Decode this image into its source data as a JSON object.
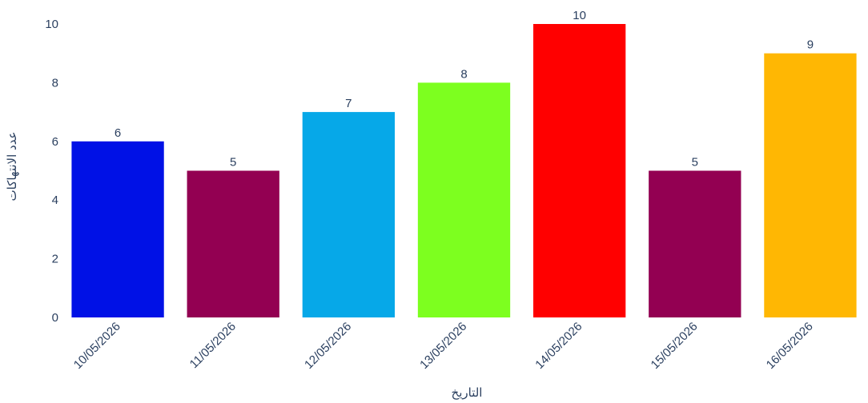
{
  "chart_data": {
    "type": "bar",
    "title": "",
    "xlabel": "التاريخ",
    "ylabel": "عدد الانتهاكات",
    "categories": [
      "10/05/2026",
      "11/05/2026",
      "12/05/2026",
      "13/05/2026",
      "14/05/2026",
      "15/05/2026",
      "16/05/2026"
    ],
    "values": [
      6,
      5,
      7,
      8,
      10,
      5,
      9
    ],
    "colors": [
      "#0011e6",
      "#930052",
      "#06a8e8",
      "#7dff1f",
      "#ff0000",
      "#930052",
      "#ffb703"
    ],
    "ylim": [
      0,
      10
    ],
    "yticks": [
      "0",
      "2",
      "4",
      "6",
      "8",
      "10"
    ],
    "data_labels": [
      "6",
      "5",
      "7",
      "8",
      "10",
      "5",
      "9"
    ],
    "grid": false,
    "legend": "none",
    "x_tick_rotation": "-45deg"
  }
}
